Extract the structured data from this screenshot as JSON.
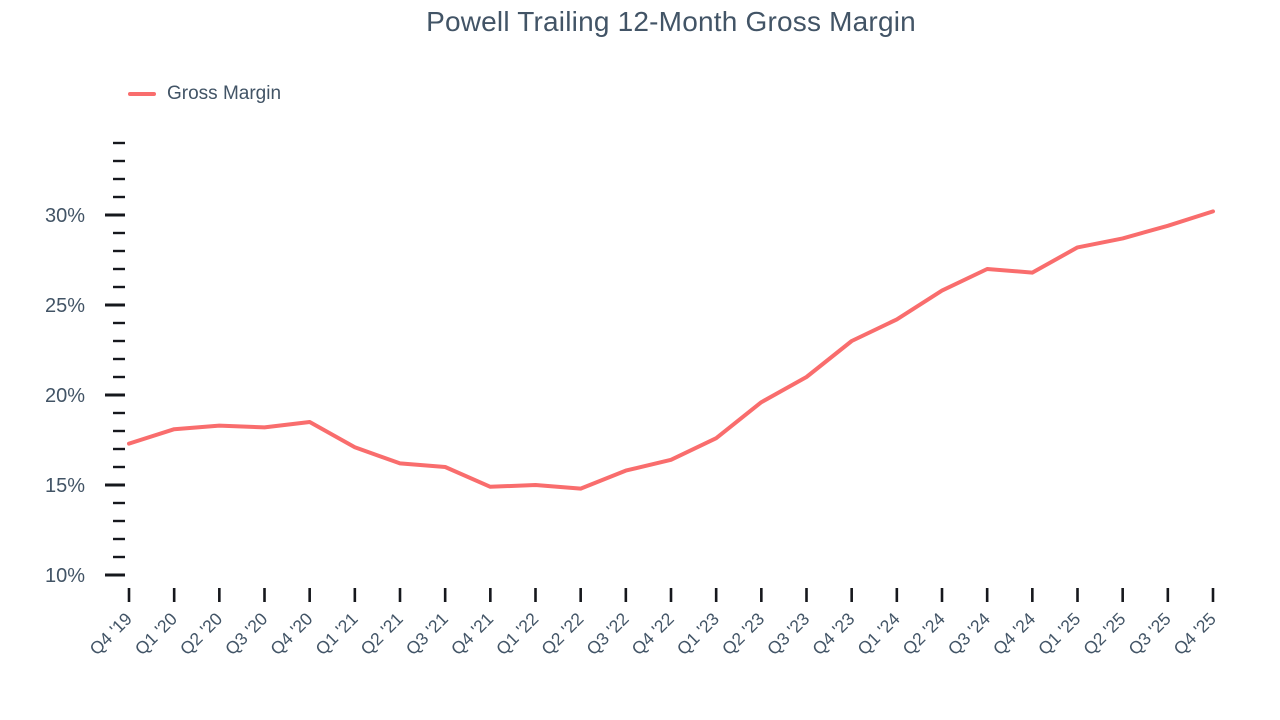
{
  "page": {
    "background": "#ffffff"
  },
  "chart_data": {
    "type": "line",
    "title": "Powell Trailing 12-Month Gross Margin",
    "xlabel": "",
    "ylabel": "",
    "grid": false,
    "legend": {
      "position": "top-left",
      "entries": [
        "Gross Margin"
      ]
    },
    "text_color": "#425466",
    "tick_color": "#16181d",
    "categories": [
      "Q4 '19",
      "Q1 '20",
      "Q2 '20",
      "Q3 '20",
      "Q4 '20",
      "Q1 '21",
      "Q2 '21",
      "Q3 '21",
      "Q4 '21",
      "Q1 '22",
      "Q2 '22",
      "Q3 '22",
      "Q4 '22",
      "Q1 '23",
      "Q2 '23",
      "Q3 '23",
      "Q4 '23",
      "Q1 '24",
      "Q2 '24",
      "Q3 '24",
      "Q4 '24",
      "Q1 '25",
      "Q2 '25",
      "Q3 '25",
      "Q4 '25"
    ],
    "series": [
      {
        "name": "Gross Margin",
        "color": "#F96D6D",
        "values": [
          17.3,
          18.1,
          18.3,
          18.2,
          18.5,
          17.1,
          16.2,
          16.0,
          14.9,
          15.0,
          14.8,
          15.8,
          16.4,
          17.6,
          19.6,
          21.0,
          23.0,
          24.2,
          25.8,
          27.0,
          26.8,
          28.2,
          28.7,
          29.4,
          30.2
        ]
      }
    ],
    "y_axis": {
      "unit": "%",
      "range_min": 10,
      "range_max": 34,
      "minor_tick_step": 1,
      "major_ticks": [
        10,
        15,
        20,
        25,
        30
      ],
      "major_tick_labels": [
        "10%",
        "15%",
        "20%",
        "25%",
        "30%"
      ]
    }
  }
}
